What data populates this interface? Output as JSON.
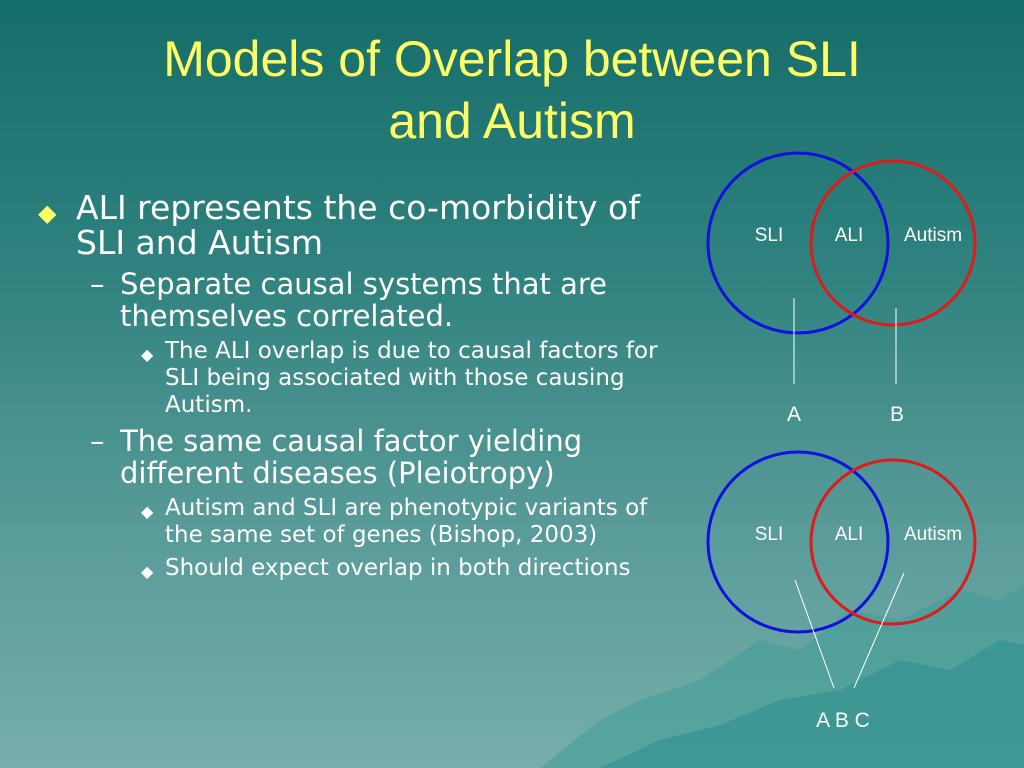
{
  "title": {
    "line1": "Models of Overlap between SLI",
    "line2": "and Autism"
  },
  "bullets": {
    "item1": "ALI represents the co-morbidity of SLI and Autism",
    "sub1": "Separate causal systems that are themselves correlated.",
    "sub1_detail": "The ALI overlap is due to causal factors for SLI being associated with those causing Autism.",
    "sub2": "The same causal factor yielding different diseases (Pleiotropy)",
    "sub2_detail1": "Autism and SLI are phenotypic variants of the same set of genes (Bishop, 2003)",
    "sub2_detail2": "Should expect overlap in both directions",
    "dash": "–"
  },
  "diagram1": {
    "left_label": "SLI",
    "middle_label": "ALI",
    "right_label": "Autism",
    "label_a": "A",
    "label_b": "B"
  },
  "diagram2": {
    "left_label": "SLI",
    "middle_label": "ALI",
    "right_label": "Autism",
    "label_abc": "A B C"
  },
  "colors": {
    "title": "#ffff66",
    "circle_left": "#1010e0",
    "circle_right": "#e01a1a",
    "text": "#ffffff"
  },
  "icons": {
    "level1_bullet": "diamond-icon",
    "level3_bullet": "small-diamond-icon"
  }
}
